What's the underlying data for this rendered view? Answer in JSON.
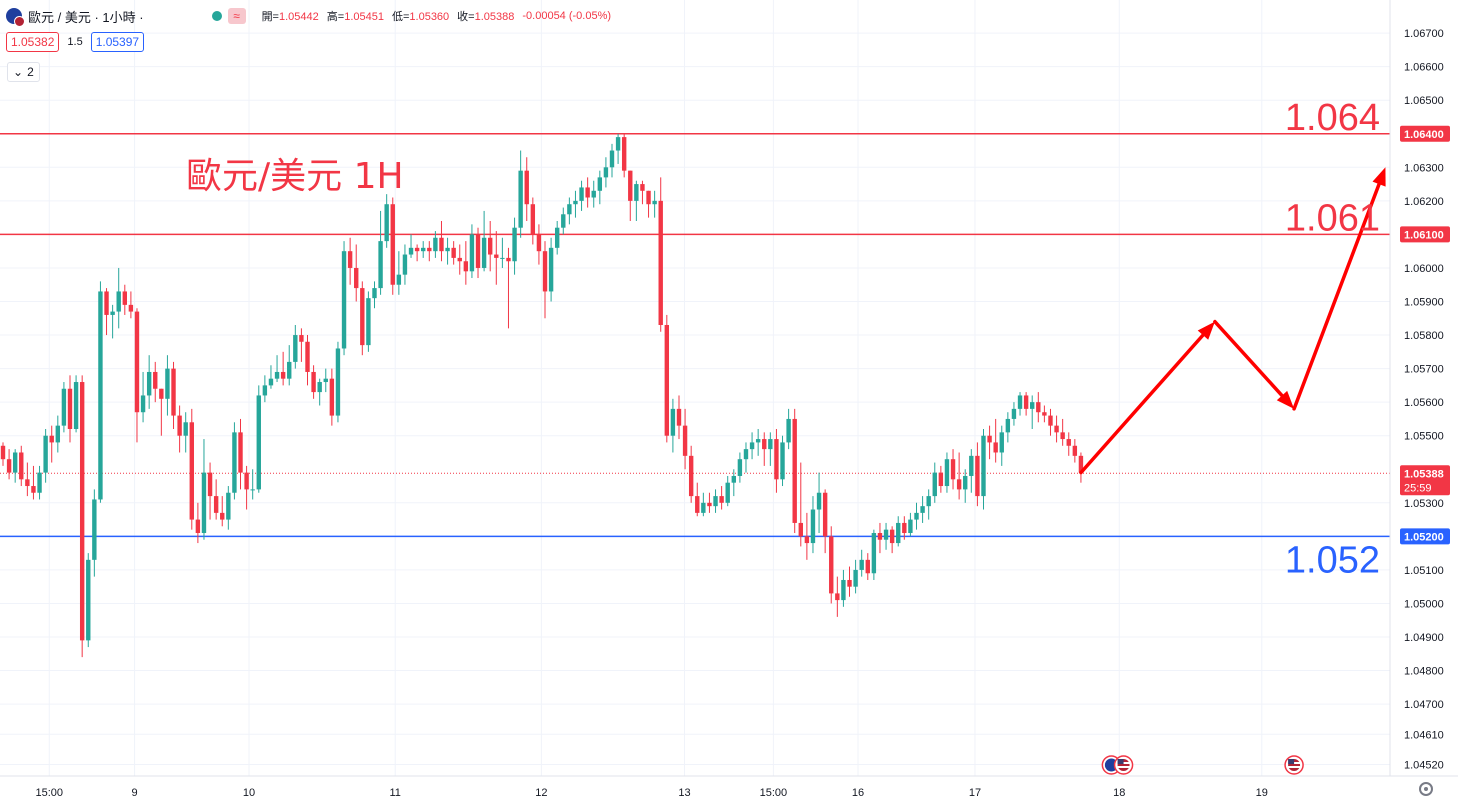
{
  "header": {
    "symbol_title": "歐元 / 美元 · 1小時 ·",
    "flag_icon": "eur-usd-flag-icon",
    "status_icon": "market-open-dot-icon",
    "wave_badge": "≈",
    "ohlc": [
      {
        "label": "開=",
        "value": "1.05442"
      },
      {
        "label": "高=",
        "value": "1.05451"
      },
      {
        "label": "低=",
        "value": "1.05360"
      },
      {
        "label": "收=",
        "value": "1.05388"
      }
    ],
    "change": "-0.00054 (-0.05%)",
    "sell_price": "1.05382",
    "spread": "1.5",
    "buy_price": "1.05397",
    "indicator_count": "2"
  },
  "colors": {
    "up": "#26a69a",
    "down": "#f23645",
    "resistance": "#f23645",
    "support": "#2962ff",
    "arrow": "#ff0000",
    "grid": "#f0f3fa",
    "axis_text": "#131722"
  },
  "chart_data": {
    "type": "candlestick",
    "title": "歐元/美元 1H",
    "symbol": "EUR/USD",
    "interval": "1H",
    "y_ticks": [
      "1.06700",
      "1.06600",
      "1.06500",
      "1.06300",
      "1.06200",
      "1.06000",
      "1.05900",
      "1.05800",
      "1.05700",
      "1.05600",
      "1.05500",
      "1.05300",
      "1.05100",
      "1.05000",
      "1.04900",
      "1.04800",
      "1.04700",
      "1.04610",
      "1.04520"
    ],
    "ylim": [
      1.0446,
      1.0677
    ],
    "x_ticks": [
      "15:00",
      "9",
      "10",
      "11",
      "12",
      "13",
      "15:00",
      "16",
      "17",
      "18",
      "19"
    ],
    "current_price": {
      "value": 1.05388,
      "label": "1.05388",
      "countdown": "25:59"
    },
    "levels": [
      {
        "value": 1.064,
        "axis_label": "1.06400",
        "big_label": "1.064",
        "kind": "resistance"
      },
      {
        "value": 1.061,
        "axis_label": "1.06100",
        "big_label": "1.061",
        "kind": "resistance"
      },
      {
        "value": 1.052,
        "axis_label": "1.05200",
        "big_label": "1.052",
        "kind": "support"
      }
    ],
    "projection": [
      {
        "bar": 0,
        "price": 1.0539
      },
      {
        "bar": 22,
        "price": 1.0584
      },
      {
        "bar": 35,
        "price": 1.0558
      },
      {
        "bar": 50,
        "price": 1.063
      }
    ],
    "event_icons": [
      {
        "bar": 5,
        "name": "eur-usd-flag-icon"
      },
      {
        "bar": 7,
        "name": "us-flag-icon"
      },
      {
        "bar": 35,
        "name": "us-flag-icon"
      }
    ],
    "candles": [
      [
        1.0547,
        1.0548,
        1.0541,
        1.0543
      ],
      [
        1.0543,
        1.0546,
        1.0537,
        1.0539
      ],
      [
        1.0539,
        1.0546,
        1.0536,
        1.0545
      ],
      [
        1.0545,
        1.0547,
        1.0535,
        1.0537
      ],
      [
        1.0537,
        1.0542,
        1.0532,
        1.0535
      ],
      [
        1.0535,
        1.0541,
        1.0531,
        1.0533
      ],
      [
        1.0533,
        1.0541,
        1.0531,
        1.0539
      ],
      [
        1.0539,
        1.0552,
        1.0536,
        1.055
      ],
      [
        1.055,
        1.0553,
        1.0542,
        1.0548
      ],
      [
        1.0548,
        1.0556,
        1.0545,
        1.0553
      ],
      [
        1.0553,
        1.0566,
        1.0551,
        1.0564
      ],
      [
        1.0564,
        1.0568,
        1.0548,
        1.0552
      ],
      [
        1.0552,
        1.0568,
        1.0551,
        1.0566
      ],
      [
        1.0566,
        1.0568,
        1.0484,
        1.0489
      ],
      [
        1.0489,
        1.0515,
        1.0487,
        1.0513
      ],
      [
        1.0513,
        1.0534,
        1.0508,
        1.0531
      ],
      [
        1.0531,
        1.0596,
        1.053,
        1.0593
      ],
      [
        1.0593,
        1.0594,
        1.058,
        1.0586
      ],
      [
        1.0586,
        1.0589,
        1.0579,
        1.0587
      ],
      [
        1.0587,
        1.06,
        1.0582,
        1.0593
      ],
      [
        1.0593,
        1.0595,
        1.0586,
        1.0589
      ],
      [
        1.0589,
        1.0593,
        1.0585,
        1.0587
      ],
      [
        1.0587,
        1.0588,
        1.0548,
        1.0557
      ],
      [
        1.0557,
        1.0569,
        1.0554,
        1.0562
      ],
      [
        1.0562,
        1.0574,
        1.0558,
        1.0569
      ],
      [
        1.0569,
        1.0572,
        1.056,
        1.0564
      ],
      [
        1.0564,
        1.0564,
        1.055,
        1.0561
      ],
      [
        1.0561,
        1.0574,
        1.0556,
        1.057
      ],
      [
        1.057,
        1.0572,
        1.0552,
        1.0556
      ],
      [
        1.0556,
        1.0559,
        1.0545,
        1.055
      ],
      [
        1.055,
        1.0557,
        1.0545,
        1.0554
      ],
      [
        1.0554,
        1.0558,
        1.0522,
        1.0525
      ],
      [
        1.0525,
        1.053,
        1.0518,
        1.0521
      ],
      [
        1.0521,
        1.0549,
        1.0519,
        1.0539
      ],
      [
        1.0539,
        1.0542,
        1.0525,
        1.0532
      ],
      [
        1.0532,
        1.0537,
        1.0525,
        1.0527
      ],
      [
        1.0527,
        1.0532,
        1.0523,
        1.0525
      ],
      [
        1.0525,
        1.0535,
        1.0522,
        1.0533
      ],
      [
        1.0533,
        1.0554,
        1.0531,
        1.0551
      ],
      [
        1.0551,
        1.0555,
        1.0534,
        1.0539
      ],
      [
        1.0539,
        1.0541,
        1.0528,
        1.0534
      ],
      [
        1.0534,
        1.054,
        1.0531,
        1.0534
      ],
      [
        1.0534,
        1.0565,
        1.0533,
        1.0562
      ],
      [
        1.0562,
        1.0568,
        1.056,
        1.0565
      ],
      [
        1.0565,
        1.0571,
        1.0564,
        1.0567
      ],
      [
        1.0567,
        1.0574,
        1.0566,
        1.0569
      ],
      [
        1.0569,
        1.0575,
        1.0565,
        1.0567
      ],
      [
        1.0567,
        1.0577,
        1.0565,
        1.0572
      ],
      [
        1.0572,
        1.0583,
        1.057,
        1.058
      ],
      [
        1.058,
        1.0582,
        1.0572,
        1.0578
      ],
      [
        1.0578,
        1.058,
        1.0565,
        1.0569
      ],
      [
        1.0569,
        1.0571,
        1.0561,
        1.0563
      ],
      [
        1.0563,
        1.0567,
        1.0559,
        1.0566
      ],
      [
        1.0566,
        1.057,
        1.0563,
        1.0567
      ],
      [
        1.0567,
        1.057,
        1.0553,
        1.0556
      ],
      [
        1.0556,
        1.0578,
        1.0554,
        1.0576
      ],
      [
        1.0576,
        1.0608,
        1.0574,
        1.0605
      ],
      [
        1.0605,
        1.0609,
        1.0595,
        1.06
      ],
      [
        1.06,
        1.0607,
        1.059,
        1.0594
      ],
      [
        1.0594,
        1.0596,
        1.0574,
        1.0577
      ],
      [
        1.0577,
        1.0593,
        1.0575,
        1.0591
      ],
      [
        1.0591,
        1.0596,
        1.0588,
        1.0594
      ],
      [
        1.0594,
        1.0617,
        1.0592,
        1.0608
      ],
      [
        1.0608,
        1.0622,
        1.0606,
        1.0619
      ],
      [
        1.0619,
        1.0621,
        1.0592,
        1.0595
      ],
      [
        1.0595,
        1.0605,
        1.0592,
        1.0598
      ],
      [
        1.0598,
        1.0607,
        1.0595,
        1.0604
      ],
      [
        1.0604,
        1.061,
        1.0603,
        1.0606
      ],
      [
        1.0606,
        1.0607,
        1.0602,
        1.0605
      ],
      [
        1.0605,
        1.0608,
        1.0603,
        1.0606
      ],
      [
        1.0606,
        1.0608,
        1.0602,
        1.0605
      ],
      [
        1.0605,
        1.0611,
        1.0603,
        1.0609
      ],
      [
        1.0609,
        1.0614,
        1.0602,
        1.0605
      ],
      [
        1.0605,
        1.0609,
        1.0601,
        1.0606
      ],
      [
        1.0606,
        1.0608,
        1.0601,
        1.0603
      ],
      [
        1.0603,
        1.0607,
        1.0598,
        1.0602
      ],
      [
        1.0602,
        1.0608,
        1.0595,
        1.0599
      ],
      [
        1.0599,
        1.0613,
        1.0597,
        1.061
      ],
      [
        1.061,
        1.0612,
        1.0597,
        1.06
      ],
      [
        1.06,
        1.0617,
        1.0599,
        1.0609
      ],
      [
        1.0609,
        1.0614,
        1.0599,
        1.0604
      ],
      [
        1.0604,
        1.0611,
        1.0595,
        1.0603
      ],
      [
        1.0603,
        1.0609,
        1.06,
        1.0603
      ],
      [
        1.0603,
        1.0606,
        1.0582,
        1.0602
      ],
      [
        1.0602,
        1.0615,
        1.0598,
        1.0612
      ],
      [
        1.0612,
        1.0635,
        1.0609,
        1.0629
      ],
      [
        1.0629,
        1.0633,
        1.0614,
        1.0619
      ],
      [
        1.0619,
        1.0621,
        1.0607,
        1.061
      ],
      [
        1.061,
        1.0613,
        1.0601,
        1.0605
      ],
      [
        1.0605,
        1.0608,
        1.0585,
        1.0593
      ],
      [
        1.0593,
        1.0609,
        1.059,
        1.0606
      ],
      [
        1.0606,
        1.0614,
        1.0604,
        1.0612
      ],
      [
        1.0612,
        1.0618,
        1.061,
        1.0616
      ],
      [
        1.0616,
        1.0621,
        1.0613,
        1.0619
      ],
      [
        1.0619,
        1.0623,
        1.0615,
        1.062
      ],
      [
        1.062,
        1.0626,
        1.0617,
        1.0624
      ],
      [
        1.0624,
        1.0627,
        1.0618,
        1.0621
      ],
      [
        1.0621,
        1.0626,
        1.0618,
        1.0623
      ],
      [
        1.0623,
        1.0629,
        1.0619,
        1.0627
      ],
      [
        1.0627,
        1.0633,
        1.0624,
        1.063
      ],
      [
        1.063,
        1.0637,
        1.0627,
        1.0635
      ],
      [
        1.0635,
        1.064,
        1.0631,
        1.0639
      ],
      [
        1.0639,
        1.064,
        1.0627,
        1.0629
      ],
      [
        1.0629,
        1.0629,
        1.0614,
        1.062
      ],
      [
        1.062,
        1.0626,
        1.0614,
        1.0625
      ],
      [
        1.0625,
        1.0626,
        1.0619,
        1.0623
      ],
      [
        1.0623,
        1.0623,
        1.0615,
        1.0619
      ],
      [
        1.0619,
        1.0623,
        1.0615,
        1.062
      ],
      [
        1.062,
        1.0627,
        1.0581,
        1.0583
      ],
      [
        1.0583,
        1.0586,
        1.0548,
        1.055
      ],
      [
        1.055,
        1.0561,
        1.0545,
        1.0558
      ],
      [
        1.0558,
        1.0562,
        1.0549,
        1.0553
      ],
      [
        1.0553,
        1.0558,
        1.054,
        1.0544
      ],
      [
        1.0544,
        1.0547,
        1.053,
        1.0532
      ],
      [
        1.0532,
        1.0536,
        1.0526,
        1.0527
      ],
      [
        1.0527,
        1.0533,
        1.0526,
        1.053
      ],
      [
        1.053,
        1.0533,
        1.0527,
        1.0529
      ],
      [
        1.0529,
        1.0534,
        1.0527,
        1.0532
      ],
      [
        1.0532,
        1.0535,
        1.0528,
        1.053
      ],
      [
        1.053,
        1.0538,
        1.0529,
        1.0536
      ],
      [
        1.0536,
        1.054,
        1.0532,
        1.0538
      ],
      [
        1.0538,
        1.0545,
        1.0536,
        1.0543
      ],
      [
        1.0543,
        1.0548,
        1.0539,
        1.0546
      ],
      [
        1.0546,
        1.0551,
        1.0543,
        1.0548
      ],
      [
        1.0548,
        1.0552,
        1.0544,
        1.0549
      ],
      [
        1.0549,
        1.0551,
        1.0541,
        1.0546
      ],
      [
        1.0546,
        1.0551,
        1.0541,
        1.0549
      ],
      [
        1.0549,
        1.0552,
        1.0533,
        1.0537
      ],
      [
        1.0537,
        1.055,
        1.0535,
        1.0548
      ],
      [
        1.0548,
        1.0558,
        1.0546,
        1.0555
      ],
      [
        1.0555,
        1.0558,
        1.0521,
        1.0524
      ],
      [
        1.0524,
        1.0542,
        1.0517,
        1.052
      ],
      [
        1.052,
        1.0527,
        1.0513,
        1.0518
      ],
      [
        1.0518,
        1.0532,
        1.0515,
        1.0528
      ],
      [
        1.0528,
        1.0539,
        1.0521,
        1.0533
      ],
      [
        1.0533,
        1.0534,
        1.0515,
        1.052
      ],
      [
        1.052,
        1.0523,
        1.05,
        1.0503
      ],
      [
        1.0503,
        1.0508,
        1.0496,
        1.0501
      ],
      [
        1.0501,
        1.051,
        1.0499,
        1.0507
      ],
      [
        1.0507,
        1.0511,
        1.0502,
        1.0505
      ],
      [
        1.0505,
        1.0513,
        1.0503,
        1.051
      ],
      [
        1.051,
        1.0516,
        1.0508,
        1.0513
      ],
      [
        1.0513,
        1.0515,
        1.0507,
        1.0509
      ],
      [
        1.0509,
        1.0522,
        1.0507,
        1.0521
      ],
      [
        1.0521,
        1.0524,
        1.0515,
        1.0519
      ],
      [
        1.0519,
        1.0524,
        1.0516,
        1.0522
      ],
      [
        1.0522,
        1.0523,
        1.0515,
        1.0518
      ],
      [
        1.0518,
        1.0526,
        1.0517,
        1.0524
      ],
      [
        1.0524,
        1.0526,
        1.0519,
        1.0521
      ],
      [
        1.0521,
        1.0527,
        1.052,
        1.0525
      ],
      [
        1.0525,
        1.053,
        1.0522,
        1.0527
      ],
      [
        1.0527,
        1.0532,
        1.0524,
        1.0529
      ],
      [
        1.0529,
        1.0534,
        1.0525,
        1.0532
      ],
      [
        1.0532,
        1.0542,
        1.053,
        1.0539
      ],
      [
        1.0539,
        1.0541,
        1.0533,
        1.0535
      ],
      [
        1.0535,
        1.0545,
        1.0533,
        1.0543
      ],
      [
        1.0543,
        1.0546,
        1.0534,
        1.0537
      ],
      [
        1.0537,
        1.0545,
        1.0531,
        1.0534
      ],
      [
        1.0534,
        1.054,
        1.053,
        1.0538
      ],
      [
        1.0538,
        1.0546,
        1.0533,
        1.0544
      ],
      [
        1.0544,
        1.0548,
        1.0529,
        1.0532
      ],
      [
        1.0532,
        1.0552,
        1.0528,
        1.055
      ],
      [
        1.055,
        1.0553,
        1.0543,
        1.0548
      ],
      [
        1.0548,
        1.0555,
        1.0542,
        1.0545
      ],
      [
        1.0545,
        1.0553,
        1.0541,
        1.0551
      ],
      [
        1.0551,
        1.0557,
        1.0548,
        1.0555
      ],
      [
        1.0555,
        1.056,
        1.0553,
        1.0558
      ],
      [
        1.0558,
        1.0563,
        1.0556,
        1.0562
      ],
      [
        1.0562,
        1.0563,
        1.0556,
        1.0558
      ],
      [
        1.0558,
        1.0562,
        1.0552,
        1.056
      ],
      [
        1.056,
        1.0563,
        1.0554,
        1.0557
      ],
      [
        1.0557,
        1.0559,
        1.0554,
        1.0556
      ],
      [
        1.0556,
        1.0558,
        1.055,
        1.0553
      ],
      [
        1.0553,
        1.0556,
        1.0548,
        1.0551
      ],
      [
        1.0551,
        1.0555,
        1.0547,
        1.0549
      ],
      [
        1.0549,
        1.0551,
        1.0544,
        1.0547
      ],
      [
        1.0547,
        1.0549,
        1.0542,
        1.0544
      ],
      [
        1.0544,
        1.0545,
        1.0536,
        1.0539
      ]
    ]
  }
}
